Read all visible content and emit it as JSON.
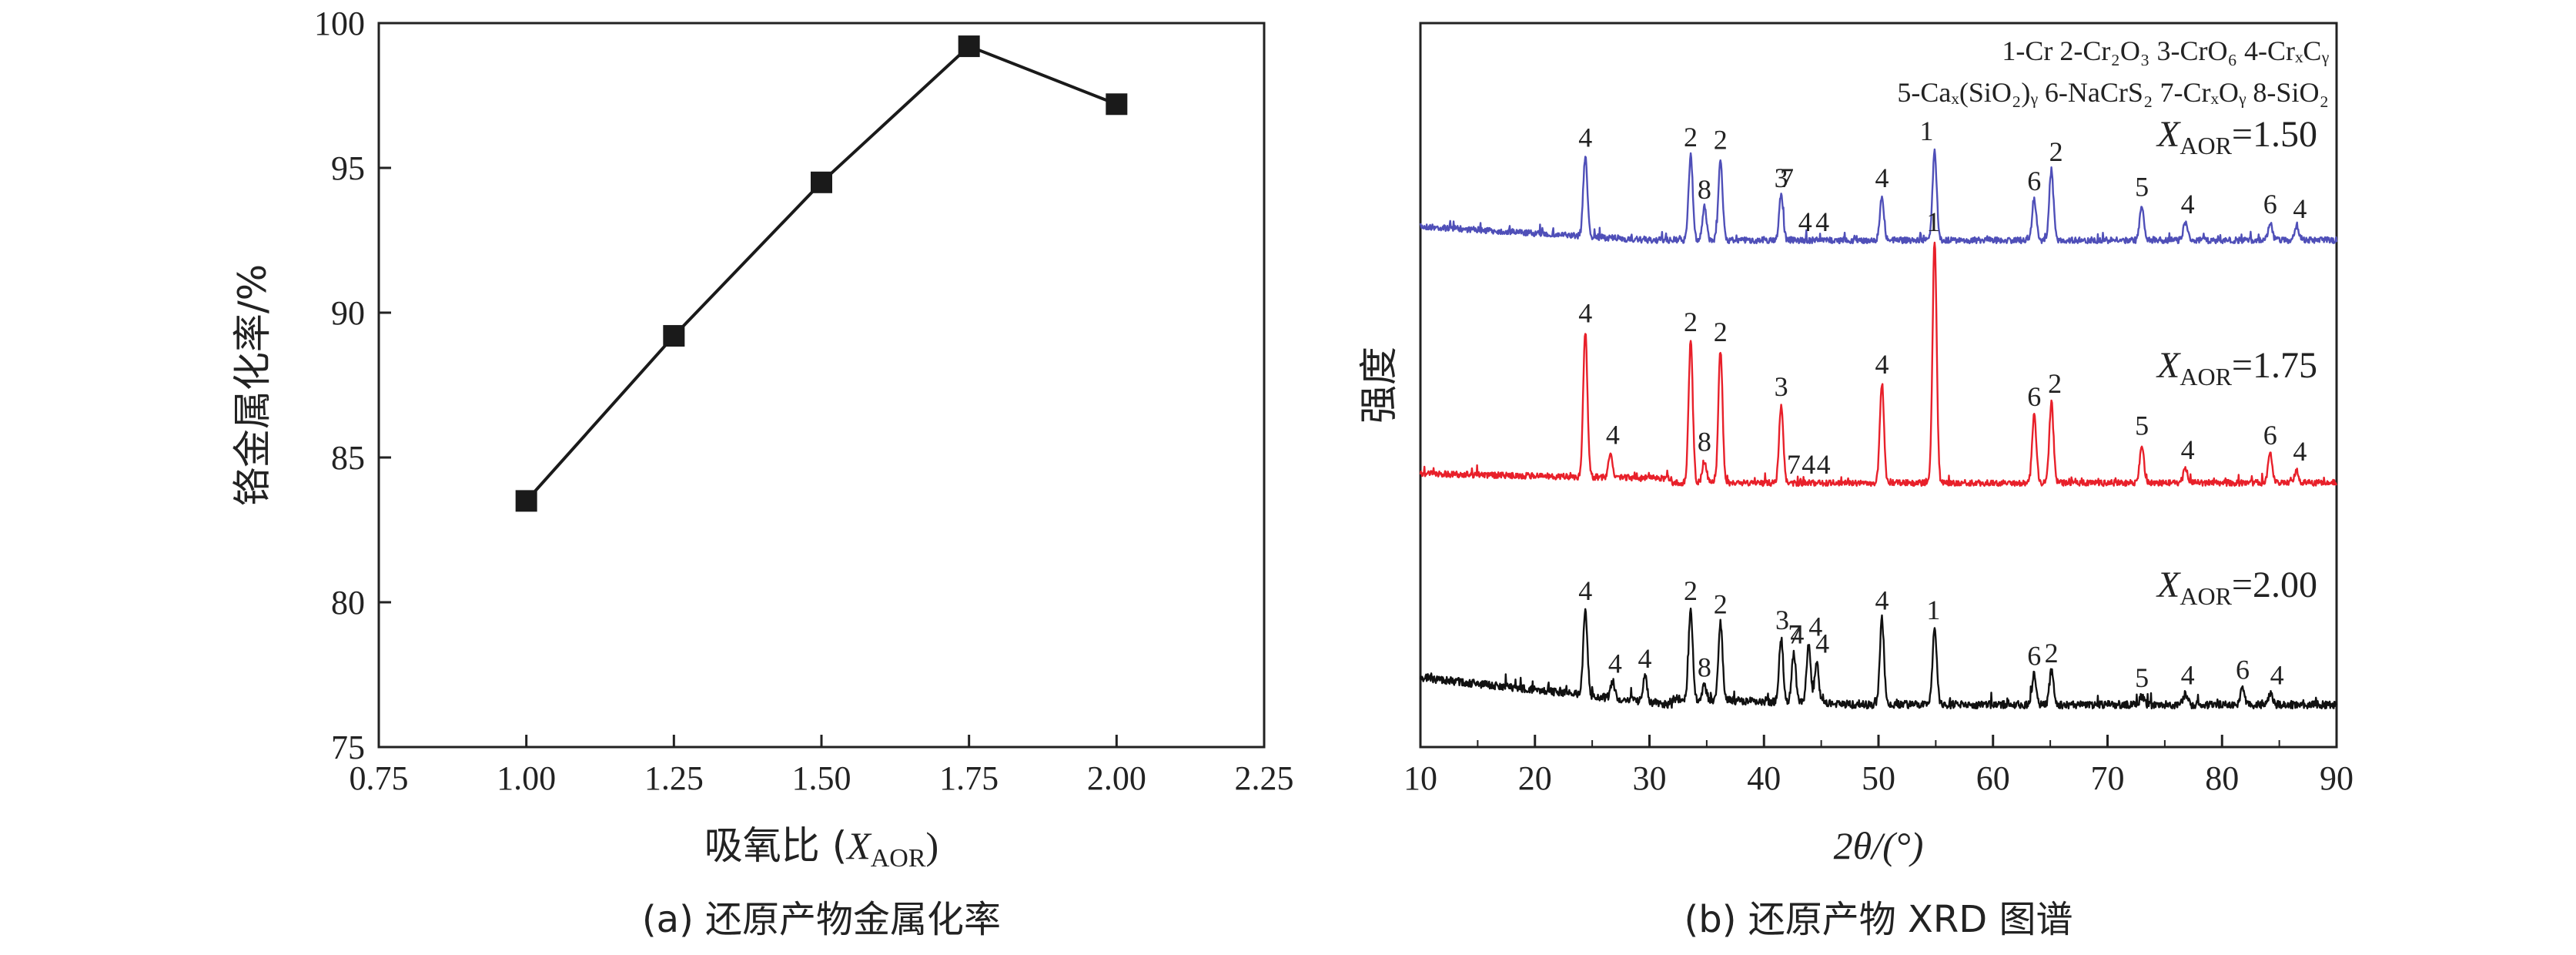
{
  "chart_data": [
    {
      "type": "line",
      "panel_caption": "(a) 还原产物金属化率",
      "xlabel_main": "吸氧比 (",
      "xlabel_var": "X",
      "xlabel_sub": "AOR",
      "xlabel_end": ")",
      "ylabel": "铬金属化率/%",
      "xlim": [
        0.75,
        2.25
      ],
      "ylim": [
        75,
        100
      ],
      "xticks": [
        "0.75",
        "1.00",
        "1.25",
        "1.50",
        "1.75",
        "2.00",
        "2.25"
      ],
      "yticks": [
        "75",
        "80",
        "85",
        "90",
        "95",
        "100"
      ],
      "x": [
        1.0,
        1.25,
        1.5,
        1.75,
        2.0
      ],
      "y": [
        83.5,
        89.2,
        94.5,
        99.2,
        97.2
      ],
      "marker": "square",
      "color": "#1a1a1a"
    },
    {
      "type": "line",
      "panel_caption": "(b) 还原产物 XRD 图谱",
      "xlabel": "2θ/(°)",
      "ylabel": "强度",
      "xlim": [
        10,
        90
      ],
      "xticks": [
        "10",
        "20",
        "30",
        "40",
        "50",
        "60",
        "70",
        "80",
        "90"
      ],
      "legend_line1": [
        "1-Cr",
        "2-Cr₂O₃",
        "3-CrO₆",
        "4-CrₓCᵧ"
      ],
      "legend_line2": [
        "5-Caₓ(SiO₂)ᵧ",
        "6-NaCrS₂",
        "7-CrₓOᵧ",
        "8-SiO₂"
      ],
      "series": [
        {
          "name_var": "X",
          "name_sub": "AOR",
          "name_val": "=1.50",
          "color": "#4f4fb8",
          "peaks": [
            [
              24.4,
              0.55
            ],
            [
              33.6,
              0.58
            ],
            [
              34.8,
              0.22
            ],
            [
              36.2,
              0.56
            ],
            [
              41.5,
              0.3
            ],
            [
              50.3,
              0.3
            ],
            [
              54.9,
              0.62
            ],
            [
              63.6,
              0.28
            ],
            [
              65.1,
              0.48
            ],
            [
              73.0,
              0.24
            ],
            [
              76.8,
              0.12
            ],
            [
              84.2,
              0.12
            ],
            [
              86.5,
              0.09
            ]
          ],
          "labels": [
            [
              24.4,
              "4"
            ],
            [
              33.6,
              "2"
            ],
            [
              34.8,
              "8"
            ],
            [
              36.2,
              "2"
            ],
            [
              41.5,
              "3"
            ],
            [
              42.0,
              "7"
            ],
            [
              43.6,
              "4"
            ],
            [
              45.1,
              "4"
            ],
            [
              50.3,
              "4"
            ],
            [
              54.2,
              "1"
            ],
            [
              63.6,
              "6"
            ],
            [
              65.5,
              "2"
            ],
            [
              73.0,
              "5"
            ],
            [
              77.0,
              "4"
            ],
            [
              84.2,
              "6"
            ],
            [
              86.8,
              "4"
            ]
          ]
        },
        {
          "name_var": "X",
          "name_sub": "AOR",
          "name_val": "=1.75",
          "color": "#e8202a",
          "peaks": [
            [
              24.4,
              0.9
            ],
            [
              26.6,
              0.15
            ],
            [
              33.6,
              0.88
            ],
            [
              34.8,
              0.14
            ],
            [
              36.2,
              0.82
            ],
            [
              41.5,
              0.48
            ],
            [
              50.3,
              0.62
            ],
            [
              54.9,
              1.5
            ],
            [
              63.6,
              0.42
            ],
            [
              65.1,
              0.5
            ],
            [
              73.0,
              0.24
            ],
            [
              76.8,
              0.09
            ],
            [
              84.2,
              0.18
            ],
            [
              86.5,
              0.08
            ]
          ],
          "labels": [
            [
              24.4,
              "4"
            ],
            [
              26.8,
              "4"
            ],
            [
              33.6,
              "2"
            ],
            [
              34.8,
              "8"
            ],
            [
              36.2,
              "2"
            ],
            [
              41.5,
              "3"
            ],
            [
              42.6,
              "7"
            ],
            [
              43.9,
              "4"
            ],
            [
              45.2,
              "4"
            ],
            [
              50.3,
              "4"
            ],
            [
              54.8,
              "1"
            ],
            [
              63.6,
              "6"
            ],
            [
              65.4,
              "2"
            ],
            [
              73.0,
              "5"
            ],
            [
              77.0,
              "4"
            ],
            [
              84.2,
              "6"
            ],
            [
              86.8,
              "4"
            ]
          ]
        },
        {
          "name_var": "X",
          "name_sub": "AOR",
          "name_val": "=2.00",
          "color": "#111111",
          "peaks": [
            [
              24.4,
              0.62
            ],
            [
              26.8,
              0.12
            ],
            [
              29.6,
              0.18
            ],
            [
              33.6,
              0.65
            ],
            [
              34.8,
              0.1
            ],
            [
              36.2,
              0.56
            ],
            [
              41.5,
              0.46
            ],
            [
              42.6,
              0.36
            ],
            [
              43.9,
              0.42
            ],
            [
              44.6,
              0.3
            ],
            [
              50.3,
              0.62
            ],
            [
              54.9,
              0.55
            ],
            [
              63.6,
              0.22
            ],
            [
              65.1,
              0.24
            ],
            [
              73.0,
              0.06
            ],
            [
              76.8,
              0.08
            ],
            [
              81.8,
              0.12
            ],
            [
              84.2,
              0.08
            ]
          ],
          "labels": [
            [
              24.4,
              "4"
            ],
            [
              27.0,
              "4"
            ],
            [
              29.6,
              "4"
            ],
            [
              33.6,
              "2"
            ],
            [
              34.8,
              "8"
            ],
            [
              36.2,
              "2"
            ],
            [
              41.6,
              "3"
            ],
            [
              42.7,
              "7"
            ],
            [
              42.9,
              "4"
            ],
            [
              44.5,
              "4"
            ],
            [
              45.1,
              "4"
            ],
            [
              50.3,
              "4"
            ],
            [
              54.8,
              "1"
            ],
            [
              63.6,
              "6"
            ],
            [
              65.1,
              "2"
            ],
            [
              73.0,
              "5"
            ],
            [
              77.0,
              "4"
            ],
            [
              81.8,
              "6"
            ],
            [
              84.8,
              "4"
            ]
          ]
        }
      ]
    }
  ]
}
